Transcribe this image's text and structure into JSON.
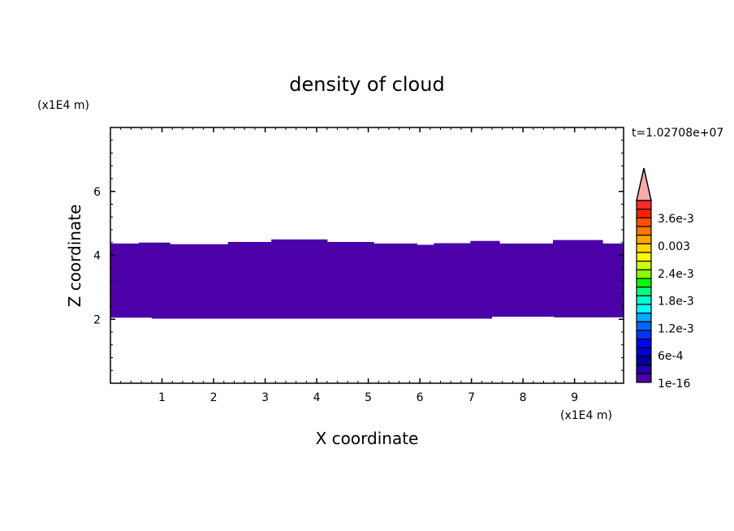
{
  "chart_data": {
    "type": "heatmap",
    "title": "density of cloud",
    "xlabel": "X coordinate",
    "ylabel": "Z coordinate",
    "x_unit": "(x1E4 m)",
    "y_unit": "(x1E4 m)",
    "time_label": "t=1.02708e+07",
    "xlim": [
      0,
      9.95
    ],
    "ylim": [
      0,
      8
    ],
    "x_ticks": [
      "1",
      "2",
      "3",
      "4",
      "5",
      "6",
      "7",
      "8",
      "9"
    ],
    "y_ticks": [
      "2",
      "4",
      "6"
    ],
    "fill_color": "#4b00a8",
    "cloud_region": {
      "top": [
        [
          0,
          4.37
        ],
        [
          0.55,
          4.37
        ],
        [
          0.55,
          4.4
        ],
        [
          1.16,
          4.4
        ],
        [
          1.16,
          4.35
        ],
        [
          2.28,
          4.35
        ],
        [
          2.28,
          4.42
        ],
        [
          3.12,
          4.42
        ],
        [
          3.12,
          4.5
        ],
        [
          4.21,
          4.5
        ],
        [
          4.21,
          4.42
        ],
        [
          5.11,
          4.42
        ],
        [
          5.11,
          4.37
        ],
        [
          5.95,
          4.37
        ],
        [
          5.95,
          4.33
        ],
        [
          6.27,
          4.33
        ],
        [
          6.27,
          4.38
        ],
        [
          6.98,
          4.38
        ],
        [
          6.98,
          4.45
        ],
        [
          7.55,
          4.45
        ],
        [
          7.55,
          4.37
        ],
        [
          8.58,
          4.37
        ],
        [
          8.58,
          4.48
        ],
        [
          9.55,
          4.48
        ],
        [
          9.55,
          4.37
        ],
        [
          9.95,
          4.37
        ]
      ],
      "bottom": [
        [
          0,
          2.05
        ],
        [
          0.8,
          2.05
        ],
        [
          0.8,
          2.02
        ],
        [
          7.4,
          2.02
        ],
        [
          7.4,
          2.08
        ],
        [
          8.6,
          2.08
        ],
        [
          8.6,
          2.06
        ],
        [
          9.95,
          2.06
        ]
      ]
    },
    "colorbar": {
      "labels": [
        "3.6e-3",
        "0.003",
        "2.4e-3",
        "1.8e-3",
        "1.2e-3",
        "6e-4",
        "1e-16"
      ],
      "colors": [
        "#ff2a2a",
        "#ff2000",
        "#ff5000",
        "#ff7800",
        "#ffa500",
        "#ffd700",
        "#ffff00",
        "#ccff00",
        "#88ff00",
        "#00ff00",
        "#00ff80",
        "#00ffcc",
        "#00ffff",
        "#00aaff",
        "#0066ff",
        "#0033ff",
        "#0000ff",
        "#0000cc",
        "#000099",
        "#2200aa",
        "#4b00a8"
      ],
      "overflow_color": "#ffaaaa"
    }
  }
}
